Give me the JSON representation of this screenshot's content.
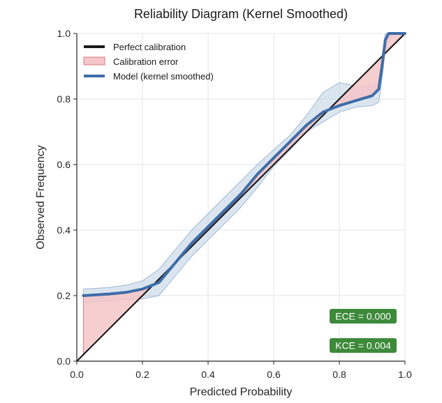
{
  "chart_data": {
    "type": "line",
    "title": "Reliability Diagram (Kernel Smoothed)",
    "xlabel": "Predicted Probability",
    "ylabel": "Observed Frequency",
    "xlim": [
      0,
      1
    ],
    "ylim": [
      0,
      1
    ],
    "xticks": [
      0.0,
      0.2,
      0.4,
      0.6,
      0.8,
      1.0
    ],
    "yticks": [
      0.0,
      0.2,
      0.4,
      0.6,
      0.8,
      1.0
    ],
    "xtick_labels": [
      "0.0",
      "0.2",
      "0.4",
      "0.6",
      "0.8",
      "1.0"
    ],
    "ytick_labels": [
      "0.0",
      "0.2",
      "0.4",
      "0.6",
      "0.8",
      "1.0"
    ],
    "grid": true,
    "legend": {
      "position": "top-left",
      "entries": [
        {
          "label": "Perfect calibration",
          "color": "#1a1a1a",
          "kind": "line"
        },
        {
          "label": "Calibration error",
          "color": "#f4c6c8",
          "kind": "patch"
        },
        {
          "label": "Model (kernel smoothed)",
          "color": "#3f6da8",
          "kind": "line"
        }
      ]
    },
    "series": [
      {
        "name": "Perfect calibration",
        "color": "#1a1a1a",
        "x": [
          0,
          1
        ],
        "y": [
          0,
          1
        ]
      },
      {
        "name": "Model (kernel smoothed)",
        "color": "#3f6da8",
        "x": [
          0.02,
          0.05,
          0.1,
          0.15,
          0.2,
          0.25,
          0.3,
          0.35,
          0.4,
          0.45,
          0.5,
          0.55,
          0.6,
          0.65,
          0.7,
          0.75,
          0.8,
          0.85,
          0.9,
          0.92,
          0.93,
          0.94,
          0.95,
          0.97,
          1.0
        ],
        "y": [
          0.2,
          0.202,
          0.205,
          0.21,
          0.22,
          0.24,
          0.3,
          0.36,
          0.41,
          0.46,
          0.51,
          0.57,
          0.62,
          0.67,
          0.72,
          0.76,
          0.78,
          0.795,
          0.81,
          0.83,
          0.9,
          0.98,
          1.0,
          1.0,
          1.0
        ]
      }
    ],
    "confidence_band": {
      "color": "#aec5dd",
      "x": [
        0.02,
        0.05,
        0.1,
        0.15,
        0.2,
        0.25,
        0.3,
        0.35,
        0.4,
        0.45,
        0.5,
        0.55,
        0.6,
        0.65,
        0.7,
        0.75,
        0.8,
        0.85,
        0.9,
        0.92,
        0.93,
        0.94,
        0.95,
        0.97,
        1.0
      ],
      "upper": [
        0.22,
        0.222,
        0.225,
        0.232,
        0.245,
        0.28,
        0.34,
        0.4,
        0.45,
        0.5,
        0.55,
        0.6,
        0.645,
        0.69,
        0.75,
        0.82,
        0.85,
        0.84,
        0.84,
        0.86,
        0.93,
        1.0,
        1.0,
        1.0,
        1.0
      ],
      "lower": [
        0.18,
        0.182,
        0.184,
        0.188,
        0.19,
        0.2,
        0.26,
        0.32,
        0.37,
        0.42,
        0.47,
        0.53,
        0.595,
        0.645,
        0.7,
        0.73,
        0.76,
        0.775,
        0.78,
        0.79,
        0.86,
        0.95,
        0.985,
        1.0,
        1.0
      ]
    },
    "annotations": [
      {
        "text": "ECE = 0.000",
        "background": "#3d8a3a",
        "position": "bottom-right-upper"
      },
      {
        "text": "KCE = 0.004",
        "background": "#3d8a3a",
        "position": "bottom-right-lower"
      }
    ]
  }
}
